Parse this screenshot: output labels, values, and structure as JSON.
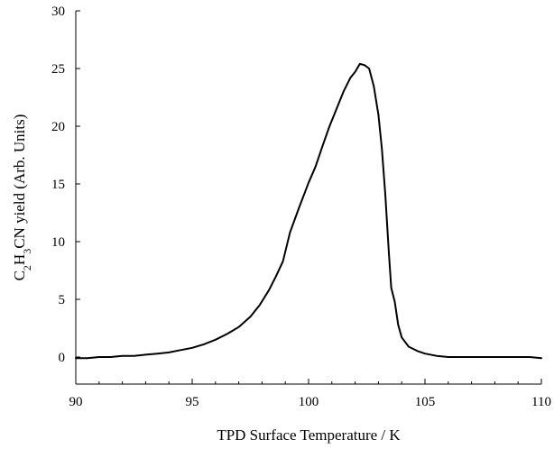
{
  "chart_data": {
    "type": "line",
    "title": "",
    "xlabel": "TPD Surface Temperature / K",
    "ylabel": {
      "prefix": "C",
      "sub1": "2",
      "mid": "H",
      "sub2": "3",
      "suffix": "CN yield (Arb. Units)"
    },
    "xlim": [
      90,
      110
    ],
    "ylim": [
      -2.5,
      30
    ],
    "xticks": [
      90,
      95,
      100,
      105,
      110
    ],
    "yticks": [
      0,
      5,
      10,
      15,
      20,
      25,
      30
    ],
    "grid": false,
    "legend": "none",
    "series": [
      {
        "color": "#000000",
        "x": [
          90.0,
          90.5,
          91.0,
          91.5,
          92.0,
          92.5,
          93.0,
          93.5,
          94.0,
          94.5,
          95.0,
          95.5,
          96.0,
          96.5,
          97.0,
          97.5,
          97.9,
          98.3,
          98.6,
          98.9,
          99.2,
          99.6,
          100.0,
          100.3,
          100.6,
          100.9,
          101.2,
          101.5,
          101.8,
          102.0,
          102.2,
          102.4,
          102.6,
          102.8,
          103.0,
          103.15,
          103.3,
          103.45,
          103.55,
          103.7,
          103.85,
          104.0,
          104.3,
          104.7,
          105.0,
          105.5,
          106.0,
          106.5,
          107.0,
          107.5,
          108.0,
          108.5,
          109.0,
          109.5,
          110.0
        ],
        "y": [
          -0.1,
          -0.1,
          0.0,
          0.0,
          0.1,
          0.1,
          0.2,
          0.3,
          0.4,
          0.6,
          0.8,
          1.1,
          1.5,
          2.0,
          2.6,
          3.5,
          4.5,
          5.8,
          7.0,
          8.3,
          10.8,
          13.0,
          15.1,
          16.5,
          18.3,
          20.0,
          21.5,
          23.0,
          24.2,
          24.7,
          25.4,
          25.3,
          25.0,
          23.5,
          21.0,
          18.0,
          14.0,
          9.0,
          6.0,
          4.8,
          2.8,
          1.7,
          0.9,
          0.5,
          0.3,
          0.1,
          0.0,
          0.0,
          0.0,
          0.0,
          0.0,
          0.0,
          0.0,
          0.0,
          -0.1
        ]
      }
    ]
  }
}
